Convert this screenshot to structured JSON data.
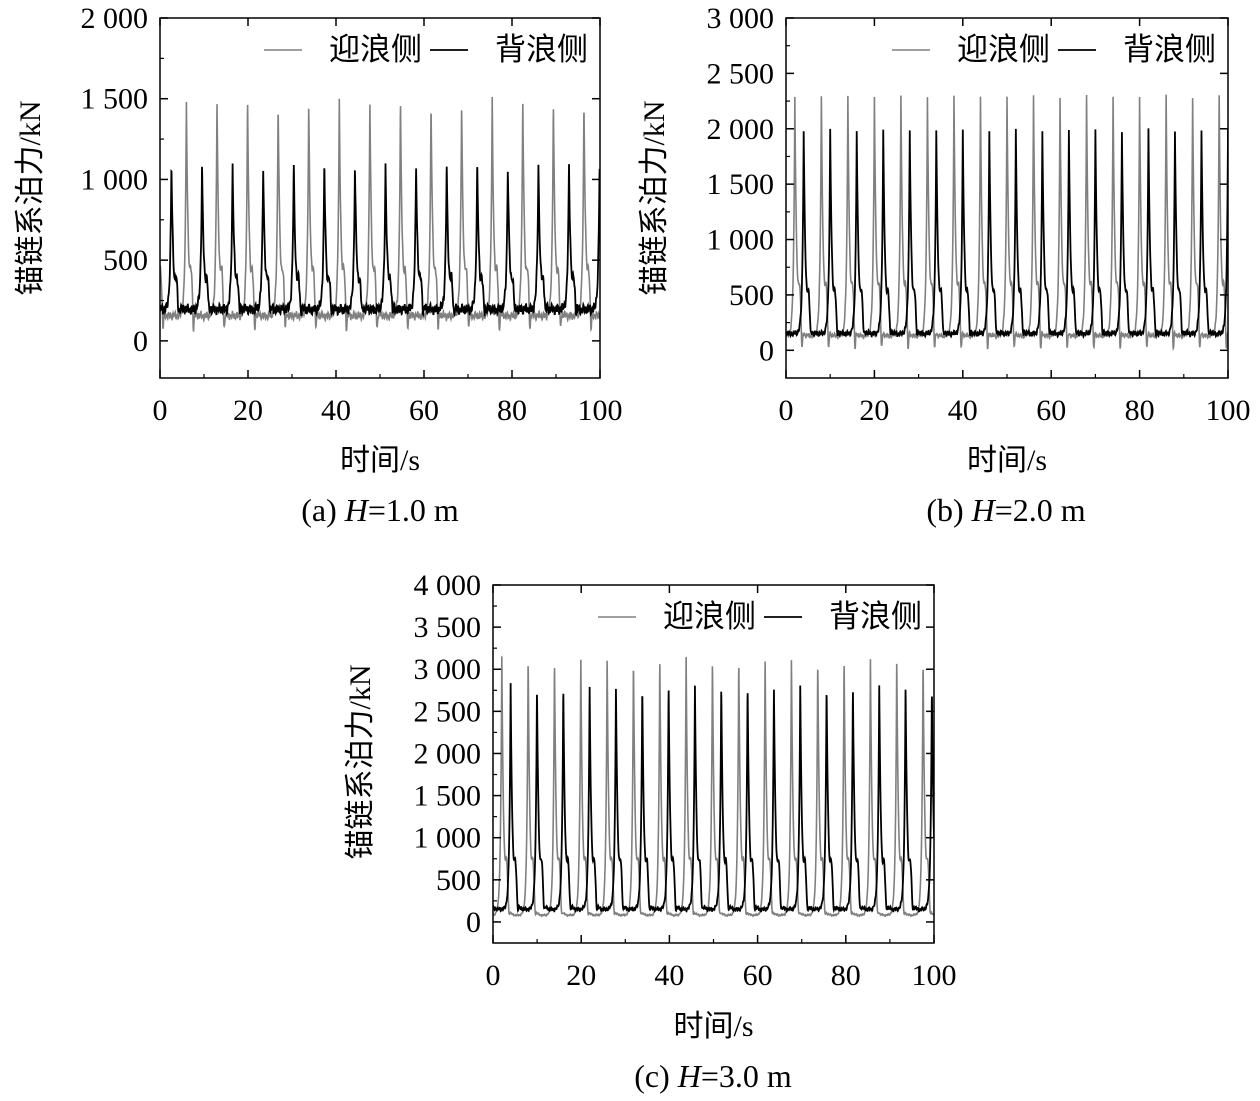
{
  "chart_data": [
    {
      "type": "line",
      "caption": {
        "prefix": "(a) ",
        "var": "H",
        "suffix": "=1.0 m"
      },
      "xlabel": "时间/s",
      "ylabel": "锚链系泊力/kN",
      "xlim": [
        0,
        100
      ],
      "ylim": [
        -230,
        2000
      ],
      "xticks": [
        0,
        20,
        40,
        60,
        80,
        100
      ],
      "xtick_labels": [
        "0",
        "20",
        "40",
        "60",
        "80",
        "100"
      ],
      "yticks": [
        0,
        500,
        1000,
        1500,
        2000
      ],
      "ytick_labels": [
        "0",
        "500",
        "1 000",
        "1 500",
        "2 000"
      ],
      "grid": false,
      "legend_position": "top-right",
      "series": [
        {
          "name": "迎浪侧",
          "color": "#808080",
          "period": 6.95,
          "phase": 6.0,
          "peak": 1490,
          "base": 155,
          "trough": 30
        },
        {
          "name": "背浪侧",
          "color": "#000000",
          "period": 6.95,
          "phase": 2.6,
          "peak": 1100,
          "base": 195,
          "trough": 150
        }
      ]
    },
    {
      "type": "line",
      "caption": {
        "prefix": "(b) ",
        "var": "H",
        "suffix": "=2.0 m"
      },
      "xlabel": "时间/s",
      "ylabel": "锚链系泊力/kN",
      "xlim": [
        0,
        100
      ],
      "ylim": [
        -250,
        3000
      ],
      "xticks": [
        0,
        20,
        40,
        60,
        80,
        100
      ],
      "xtick_labels": [
        "0",
        "20",
        "40",
        "60",
        "80",
        "100"
      ],
      "yticks": [
        0,
        500,
        1000,
        1500,
        2000,
        2500,
        3000
      ],
      "ytick_labels": [
        "0",
        "500",
        "1 000",
        "1 500",
        "2 000",
        "2 500",
        "3 000"
      ],
      "grid": false,
      "legend_position": "top-right",
      "series": [
        {
          "name": "迎浪侧",
          "color": "#808080",
          "period": 6.0,
          "phase": 2.0,
          "peak": 2300,
          "base": 130,
          "trough": -60
        },
        {
          "name": "背浪侧",
          "color": "#000000",
          "period": 6.0,
          "phase": 4.0,
          "peak": 1990,
          "base": 150,
          "trough": 80
        }
      ]
    },
    {
      "type": "line",
      "caption": {
        "prefix": "(c) ",
        "var": "H",
        "suffix": "=3.0 m"
      },
      "xlabel": "时间/s",
      "ylabel": "锚链系泊力/kN",
      "xlim": [
        0,
        100
      ],
      "ylim": [
        -250,
        4000
      ],
      "xticks": [
        0,
        20,
        40,
        60,
        80,
        100
      ],
      "xtick_labels": [
        "0",
        "20",
        "40",
        "60",
        "80",
        "100"
      ],
      "yticks": [
        0,
        500,
        1000,
        1500,
        2000,
        2500,
        3000,
        3500,
        4000
      ],
      "ytick_labels": [
        "0",
        "500",
        "1 000",
        "1 500",
        "2 000",
        "2 500",
        "3 000",
        "3 500",
        "4 000"
      ],
      "grid": false,
      "legend_position": "top-right",
      "series": [
        {
          "name": "迎浪侧",
          "color": "#808080",
          "period": 5.97,
          "phase": 2.0,
          "peak": 3150,
          "base": 80,
          "trough": 0
        },
        {
          "name": "背浪侧",
          "color": "#000000",
          "period": 5.97,
          "phase": 4.0,
          "peak": 2820,
          "base": 150,
          "trough": 70
        }
      ]
    }
  ]
}
